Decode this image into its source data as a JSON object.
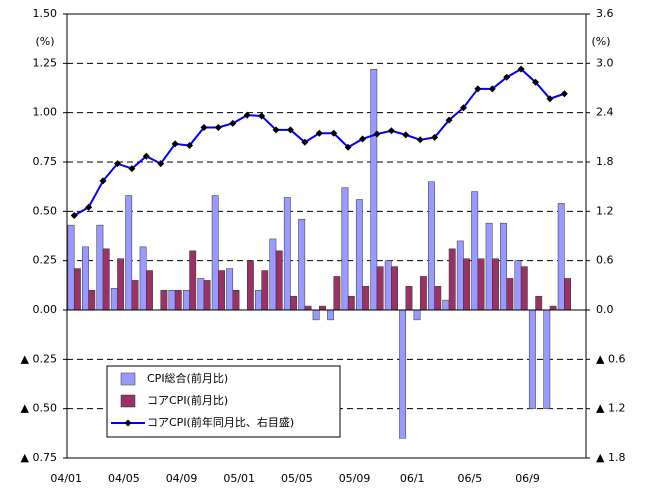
{
  "chart_data": {
    "type": "bar_line",
    "y_label": "(%)",
    "y2_label": "(%)",
    "categories": [
      "04/01",
      null,
      null,
      null,
      "04/05",
      null,
      null,
      null,
      "04/09",
      null,
      null,
      null,
      "05/01",
      null,
      null,
      null,
      "05/05",
      null,
      null,
      null,
      "05/09",
      null,
      null,
      null,
      "06/1",
      null,
      null,
      null,
      "06/5",
      null,
      null,
      null,
      "06/9",
      null,
      null,
      null
    ],
    "series": [
      {
        "name": "CPI総合(前月比)",
        "type": "bar",
        "color": "#9999ff",
        "values": [
          0.43,
          0.32,
          0.43,
          0.11,
          0.58,
          0.32,
          0,
          0.1,
          0.1,
          0.16,
          0.58,
          0.21,
          0,
          0.1,
          0.36,
          0.57,
          0.46,
          -0.05,
          -0.05,
          0.62,
          0.56,
          1.22,
          0.25,
          -0.65,
          -0.05,
          0.65,
          0.05,
          0.35,
          0.6,
          0.44,
          0.44,
          0.25,
          -0.5,
          -0.5,
          0.54,
          null
        ]
      },
      {
        "name": "コアCPI(前月比)",
        "type": "bar",
        "color": "#993366",
        "values": [
          0.21,
          0.1,
          0.31,
          0.26,
          0.15,
          0.2,
          0.1,
          0.1,
          0.3,
          0.15,
          0.2,
          0.1,
          0.25,
          0.2,
          0.3,
          0.07,
          0.02,
          0.02,
          0.17,
          0.07,
          0.12,
          0.22,
          0.22,
          0.12,
          0.17,
          0.12,
          0.31,
          0.26,
          0.26,
          0.26,
          0.16,
          0.22,
          0.07,
          0.02,
          0.16,
          null
        ]
      },
      {
        "name": "コアCPI(前年同月比、右目盛)",
        "type": "line",
        "axis": "y2",
        "color": "#0000ff",
        "values": [
          1.15,
          1.25,
          1.57,
          1.78,
          1.72,
          1.87,
          1.78,
          2.02,
          2.0,
          2.22,
          2.22,
          2.27,
          2.37,
          2.36,
          2.19,
          2.19,
          2.04,
          2.15,
          2.15,
          1.98,
          2.08,
          2.14,
          2.18,
          2.13,
          2.07,
          2.1,
          2.31,
          2.46,
          2.69,
          2.69,
          2.83,
          2.93,
          2.77,
          2.57,
          2.63,
          null
        ]
      }
    ],
    "ylim": [
      -0.75,
      1.5
    ],
    "yticks": [
      {
        "value": 1.5,
        "label": "1.50"
      },
      {
        "value": 1.25,
        "label": "1.25"
      },
      {
        "value": 1,
        "label": "1.00"
      },
      {
        "value": 0.75,
        "label": "0.75"
      },
      {
        "value": 0.5,
        "label": "0.50"
      },
      {
        "value": 0.25,
        "label": "0.25"
      },
      {
        "value": 0,
        "label": "0.00"
      },
      {
        "value": -0.25,
        "label": "▲ 0.25"
      },
      {
        "value": -0.5,
        "label": "▲ 0.50"
      },
      {
        "value": -0.75,
        "label": "▲ 0.75"
      }
    ],
    "y2lim": [
      -1.8,
      3.6
    ],
    "y2ticks": [
      3.6,
      {
        "value": 3,
        "label": "3.0"
      },
      2.4,
      1.8,
      1.2,
      0.6,
      {
        "value": 0,
        "label": "0.0"
      },
      {
        "value": -0.6,
        "label": "▲ 0.6"
      },
      {
        "value": -1.2,
        "label": "▲ 1.2"
      },
      {
        "value": -1.8,
        "label": "▲ 1.8"
      }
    ],
    "grid": true,
    "legend": "lower left"
  }
}
